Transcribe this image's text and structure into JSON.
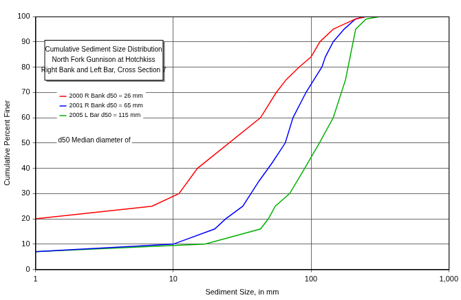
{
  "chart_data": {
    "type": "line",
    "title": [
      "Cumulative Sediment Size Distribution",
      "North Fork Gunnison at Hotchkiss",
      "Right Bank and Left Bar, Cross Section 7"
    ],
    "x_label": "Sediment Size, in mm",
    "y_label": "Cumulative Percent Finer",
    "annotations": [
      "d50 Median diameter of"
    ],
    "log": "x",
    "grid": true,
    "legend": "upper left",
    "xlim": [
      1,
      1000
    ],
    "xticks": [
      1,
      10,
      100,
      {
        "value": 1000,
        "label": "1,000"
      }
    ],
    "ylim": [
      0,
      100
    ],
    "yticks": [
      0,
      10,
      20,
      30,
      40,
      50,
      60,
      70,
      80,
      90,
      100
    ],
    "series": [
      {
        "name": "2000 R Bank d50 = 26 mm",
        "color": "#ff0000",
        "x": [
          1,
          7,
          11,
          15,
          43,
          56,
          66,
          82,
          100,
          116,
          145,
          210,
          250
        ],
        "values": [
          20,
          25,
          30,
          40,
          60,
          70,
          75,
          80,
          84,
          90,
          95,
          99,
          100
        ]
      },
      {
        "name": "2001 R Bank d50 = 65 mm",
        "color": "#0000ff",
        "x": [
          1,
          10,
          20,
          24,
          32,
          42,
          52,
          65,
          74,
          92,
          105,
          120,
          127,
          145,
          174,
          210,
          250
        ],
        "values": [
          7,
          10,
          16,
          20,
          25,
          35,
          42,
          50,
          60,
          70,
          75,
          80,
          84,
          90,
          95,
          99,
          100
        ]
      },
      {
        "name": "2005 L Bar d50 = 115 mm",
        "color": "#00b000",
        "x": [
          1,
          10,
          17,
          43,
          49,
          55,
          70,
          90,
          115,
          145,
          178,
          211,
          251,
          316
        ],
        "values": [
          7,
          9.5,
          10,
          16,
          20,
          25,
          30,
          40,
          50,
          60,
          75,
          95,
          99,
          100
        ]
      }
    ]
  }
}
